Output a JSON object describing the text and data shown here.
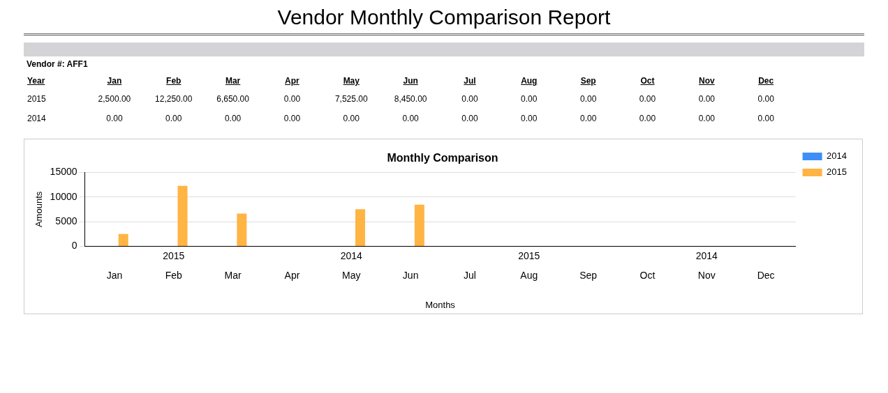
{
  "chart_data": {
    "type": "bar",
    "title": "Vendor Monthly Comparison Report",
    "subtitle": "Monthly Comparison",
    "xlabel": "Months",
    "ylabel": "Amounts",
    "annotations": [
      "Vendor #: AFF1",
      "Year",
      "2015",
      "2014",
      "2015",
      "2014"
    ],
    "categories": [
      "Jan",
      "Feb",
      "Mar",
      "Apr",
      "May",
      "Jun",
      "Jul",
      "Aug",
      "Sep",
      "Oct",
      "Nov",
      "Dec"
    ],
    "series": [
      {
        "name": "2014",
        "color": "#3e8ef7",
        "values": [
          0,
          0,
          0,
          0,
          0,
          0,
          0,
          0,
          0,
          0,
          0,
          0
        ],
        "value_labels": [
          "0.00",
          "0.00",
          "0.00",
          "0.00",
          "0.00",
          "0.00",
          "0.00",
          "0.00",
          "0.00",
          "0.00",
          "0.00",
          "0.00"
        ]
      },
      {
        "name": "2015",
        "color": "#ffb444",
        "values": [
          2500,
          12250,
          6650,
          0,
          7525,
          8450,
          0,
          0,
          0,
          0,
          0,
          0
        ],
        "value_labels": [
          "2,500.00",
          "12,250.00",
          "6,650.00",
          "0.00",
          "7,525.00",
          "8,450.00",
          "0.00",
          "0.00",
          "0.00",
          "0.00",
          "0.00",
          "0.00"
        ]
      }
    ],
    "ylim": [
      0,
      15000
    ],
    "yticks": [
      0,
      5000,
      10000,
      15000
    ],
    "grid": "y",
    "legend": "right"
  }
}
